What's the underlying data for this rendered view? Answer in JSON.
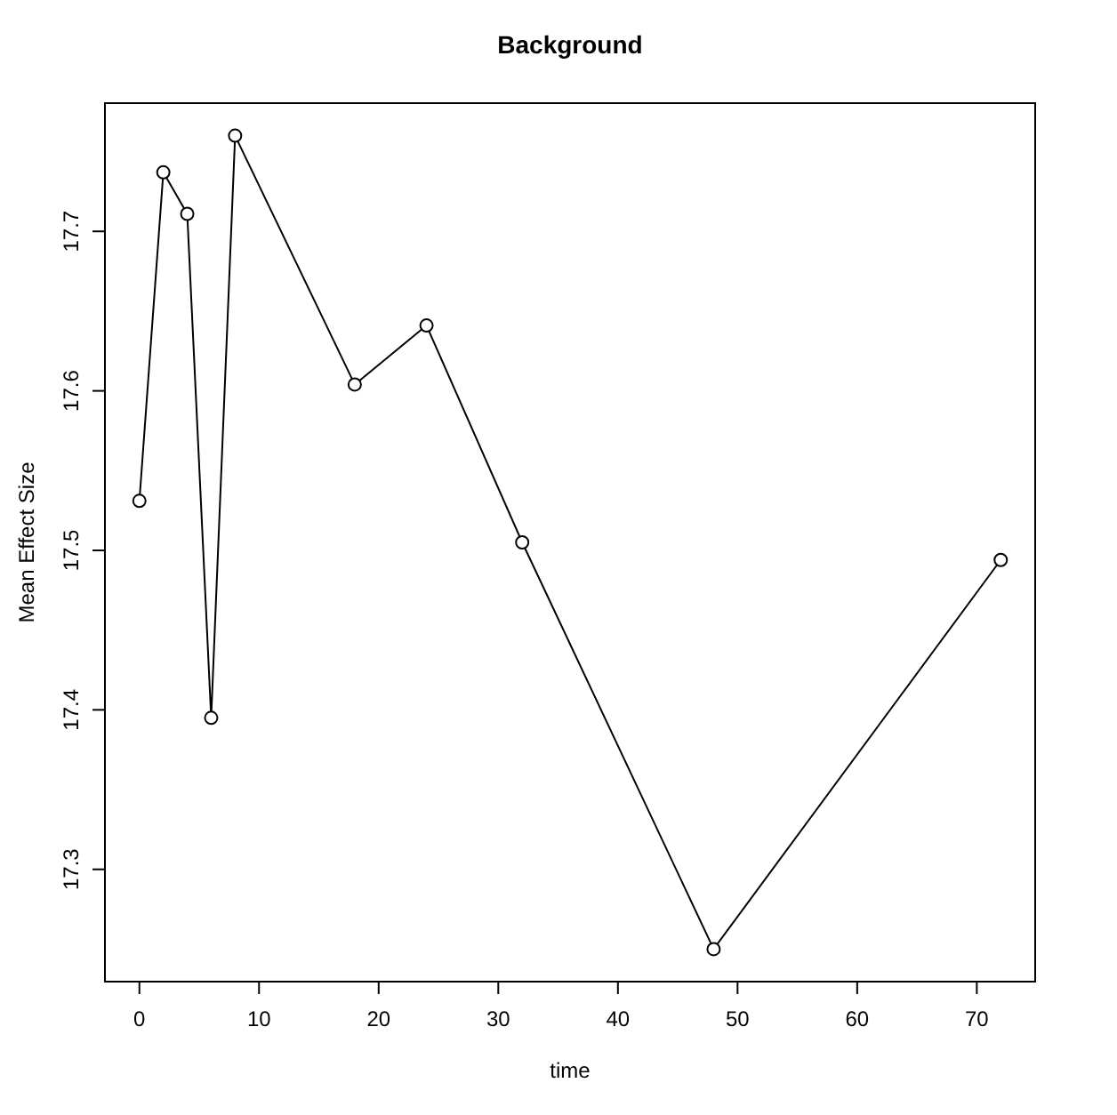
{
  "chart_data": {
    "type": "line",
    "title": "Background",
    "xlabel": "time",
    "ylabel": "Mean Effect Size",
    "x": [
      0,
      2,
      4,
      6,
      8,
      18,
      24,
      32,
      48,
      72
    ],
    "values": [
      17.531,
      17.737,
      17.711,
      17.395,
      17.76,
      17.604,
      17.641,
      17.505,
      17.25,
      17.494
    ],
    "color": "#000000",
    "marker": "circle",
    "xlim": [
      -2.88,
      74.88
    ],
    "xticks": [
      0,
      10,
      20,
      30,
      40,
      50,
      60,
      70
    ],
    "ylim": [
      17.2296,
      17.7804
    ],
    "yticks": [
      17.3,
      17.4,
      17.5,
      17.6,
      17.7
    ]
  }
}
